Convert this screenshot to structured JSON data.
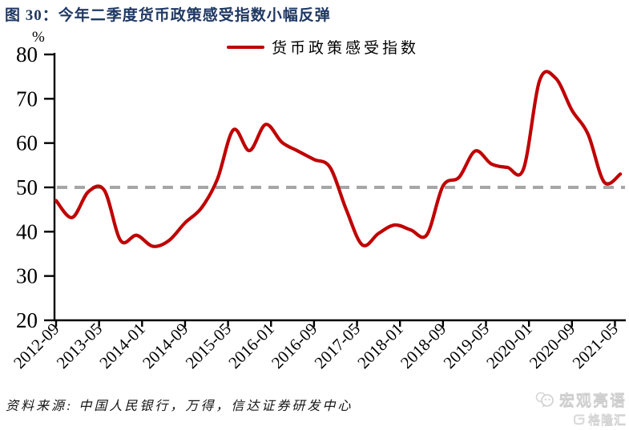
{
  "header": {
    "title": "图 30：今年二季度货币政策感受指数小幅反弹"
  },
  "colors": {
    "accent_red": "#C00000",
    "title_navy": "#1F3864",
    "reference_gray": "#A6A6A6",
    "axis_black": "#000000",
    "watermark_gray": "#D4D4D4"
  },
  "chart_data": {
    "type": "line",
    "figure_label": "图 30",
    "title": "今年二季度货币政策感受指数小幅反弹",
    "legend": "货币政策感受指数",
    "legend_position": "top",
    "ylabel": "%",
    "ylim": [
      20,
      80
    ],
    "ytick_interval": 10,
    "grid": false,
    "reference_line_y": 50,
    "x_ticklabels": [
      "2012-09",
      "2013-05",
      "2014-01",
      "2014-09",
      "2015-05",
      "2016-01",
      "2016-09",
      "2017-05",
      "2018-01",
      "2018-09",
      "2019-05",
      "2020-01",
      "2020-09",
      "2021-05"
    ],
    "categories": [
      "2012-09",
      "2012-12",
      "2013-03",
      "2013-06",
      "2013-09",
      "2013-12",
      "2014-03",
      "2014-06",
      "2014-09",
      "2014-12",
      "2015-03",
      "2015-06",
      "2015-09",
      "2015-12",
      "2016-03",
      "2016-06",
      "2016-09",
      "2016-12",
      "2017-03",
      "2017-06",
      "2017-09",
      "2017-12",
      "2018-03",
      "2018-06",
      "2018-09",
      "2018-12",
      "2019-03",
      "2019-06",
      "2019-09",
      "2019-12",
      "2020-03",
      "2020-06",
      "2020-09",
      "2020-12",
      "2021-03",
      "2021-06"
    ],
    "series": [
      {
        "name": "货币政策感受指数",
        "color": "#C00000",
        "values": [
          47.0,
          43.2,
          49.0,
          49.3,
          38.0,
          39.2,
          36.7,
          38.0,
          42.0,
          45.3,
          51.8,
          63.0,
          58.3,
          64.2,
          60.2,
          58.2,
          56.3,
          54.5,
          45.0,
          37.0,
          39.6,
          41.5,
          40.4,
          39.3,
          50.3,
          52.3,
          58.2,
          55.3,
          54.5,
          54.2,
          74.2,
          74.6,
          67.4,
          62.0,
          51.2,
          53.0
        ]
      }
    ]
  },
  "source": {
    "text": "资料来源: 中国人民银行，万得，信达证券研发中心"
  },
  "watermark": {
    "brand": "宏观亮语",
    "badge": "格隆汇"
  }
}
